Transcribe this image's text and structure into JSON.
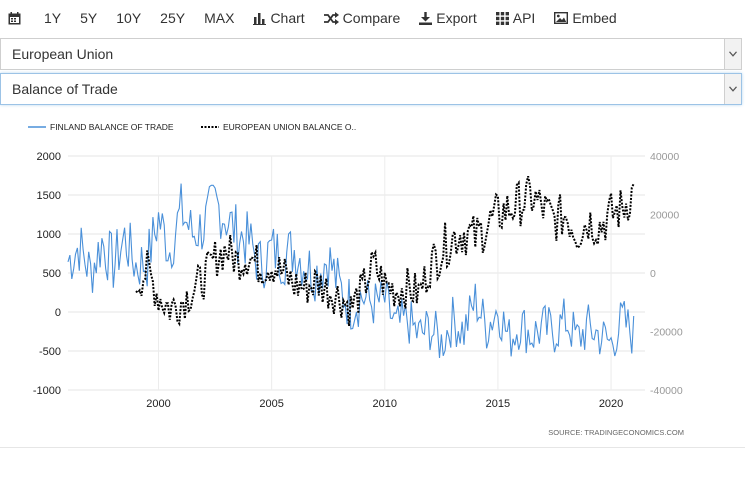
{
  "toolbar": {
    "items": [
      {
        "label": "",
        "icon": "calendar-icon"
      },
      {
        "label": "1Y"
      },
      {
        "label": "5Y"
      },
      {
        "label": "10Y"
      },
      {
        "label": "25Y"
      },
      {
        "label": "MAX"
      },
      {
        "label": "Chart",
        "icon": "bar-chart-icon"
      },
      {
        "label": "Compare",
        "icon": "shuffle-icon"
      },
      {
        "label": "Export",
        "icon": "download-icon"
      },
      {
        "label": "API",
        "icon": "grid-icon"
      },
      {
        "label": "Embed",
        "icon": "image-icon"
      }
    ]
  },
  "country_select": {
    "value": "European Union"
  },
  "indicator_select": {
    "value": "Balance of Trade"
  },
  "chart_data": {
    "type": "line",
    "source": "SOURCE:  TRADINGECONOMICS.COM",
    "series": [
      {
        "name": "FINLAND BALANCE OF TRADE",
        "axis": "left",
        "color": "#4a90d9",
        "dash": "solid"
      },
      {
        "name": "EUROPEAN UNION BALANCE O..",
        "axis": "right",
        "color": "#000000",
        "dash": "dotted"
      }
    ],
    "x_axis": {
      "min": 1996,
      "max": 2021.5,
      "ticks": [
        2000,
        2005,
        2010,
        2015,
        2020
      ]
    },
    "y_left": {
      "min": -1000,
      "max": 2000,
      "ticks": [
        2000,
        1500,
        1000,
        500,
        0,
        -500,
        -1000
      ]
    },
    "y_right": {
      "min": -40000,
      "max": 40000,
      "ticks": [
        40000,
        20000,
        0,
        -20000,
        -40000
      ]
    },
    "grid": true,
    "legend_position": "top-left",
    "finland_points": [
      [
        1996.0,
        650
      ],
      [
        1996.5,
        850
      ],
      [
        1997.0,
        500
      ],
      [
        1997.5,
        900
      ],
      [
        1998.0,
        600
      ],
      [
        1998.5,
        950
      ],
      [
        1999.0,
        600
      ],
      [
        1999.5,
        650
      ],
      [
        2000.0,
        1200
      ],
      [
        2000.5,
        800
      ],
      [
        2001.0,
        1300
      ],
      [
        2001.5,
        1000
      ],
      [
        2002.0,
        1100
      ],
      [
        2002.5,
        1400
      ],
      [
        2003.0,
        1200
      ],
      [
        2003.5,
        1000
      ],
      [
        2004.0,
        900
      ],
      [
        2004.5,
        600
      ],
      [
        2005.0,
        800
      ],
      [
        2005.5,
        700
      ],
      [
        2006.0,
        800
      ],
      [
        2006.5,
        600
      ],
      [
        2007.0,
        500
      ],
      [
        2007.5,
        700
      ],
      [
        2008.0,
        300
      ],
      [
        2008.5,
        100
      ],
      [
        2009.0,
        200
      ],
      [
        2009.5,
        100
      ],
      [
        2010.0,
        150
      ],
      [
        2010.5,
        -200
      ],
      [
        2011.0,
        -100
      ],
      [
        2011.5,
        -300
      ],
      [
        2012.0,
        -200
      ],
      [
        2012.5,
        -400
      ],
      [
        2013.0,
        -100
      ],
      [
        2013.5,
        -250
      ],
      [
        2014.0,
        150
      ],
      [
        2014.5,
        -200
      ],
      [
        2015.0,
        50
      ],
      [
        2015.5,
        -350
      ],
      [
        2016.0,
        -150
      ],
      [
        2016.5,
        -300
      ],
      [
        2017.0,
        -200
      ],
      [
        2017.5,
        -250
      ],
      [
        2018.0,
        -100
      ],
      [
        2018.5,
        -350
      ],
      [
        2019.0,
        -200
      ],
      [
        2019.5,
        -300
      ],
      [
        2020.0,
        -400
      ],
      [
        2020.5,
        -100
      ],
      [
        2021.0,
        -300
      ]
    ],
    "eu_points": [
      [
        1999.0,
        -4000
      ],
      [
        1999.5,
        1000
      ],
      [
        2000.0,
        -8000
      ],
      [
        2000.5,
        -12000
      ],
      [
        2001.0,
        -10000
      ],
      [
        2001.5,
        -6000
      ],
      [
        2002.0,
        -2000
      ],
      [
        2002.5,
        5000
      ],
      [
        2003.0,
        8000
      ],
      [
        2003.5,
        4000
      ],
      [
        2004.0,
        6000
      ],
      [
        2004.5,
        2000
      ],
      [
        2005.0,
        3000
      ],
      [
        2005.5,
        0
      ],
      [
        2006.0,
        -4000
      ],
      [
        2006.5,
        -5000
      ],
      [
        2007.0,
        -3000
      ],
      [
        2007.5,
        -6000
      ],
      [
        2008.0,
        -8000
      ],
      [
        2008.5,
        -12000
      ],
      [
        2009.0,
        -6000
      ],
      [
        2009.5,
        3000
      ],
      [
        2010.0,
        -4000
      ],
      [
        2010.5,
        -6000
      ],
      [
        2011.0,
        -5000
      ],
      [
        2011.5,
        -7000
      ],
      [
        2012.0,
        2000
      ],
      [
        2012.5,
        8000
      ],
      [
        2013.0,
        12000
      ],
      [
        2013.5,
        14000
      ],
      [
        2014.0,
        12000
      ],
      [
        2014.5,
        16000
      ],
      [
        2015.0,
        20000
      ],
      [
        2015.5,
        22000
      ],
      [
        2016.0,
        24000
      ],
      [
        2016.5,
        26000
      ],
      [
        2017.0,
        22000
      ],
      [
        2017.5,
        18000
      ],
      [
        2018.0,
        20000
      ],
      [
        2018.5,
        14000
      ],
      [
        2019.0,
        18000
      ],
      [
        2019.5,
        16000
      ],
      [
        2020.0,
        20000
      ],
      [
        2020.5,
        22000
      ],
      [
        2021.0,
        28000
      ]
    ]
  }
}
